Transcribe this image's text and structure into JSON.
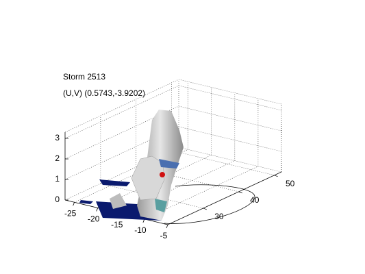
{
  "chart_data": {
    "type": "surface3d",
    "title": "Storm 2513",
    "subtitle": "(U,V) (0.5743,-3.9202)",
    "xlim": [
      -27,
      -5
    ],
    "xticks": [
      -25,
      -20,
      -15,
      -10,
      -5
    ],
    "ylim": [
      20,
      52
    ],
    "yticks": [
      30,
      40,
      50
    ],
    "zlim": [
      0,
      3.3
    ],
    "zticks": [
      0,
      1,
      2,
      3
    ],
    "grid": true
  }
}
